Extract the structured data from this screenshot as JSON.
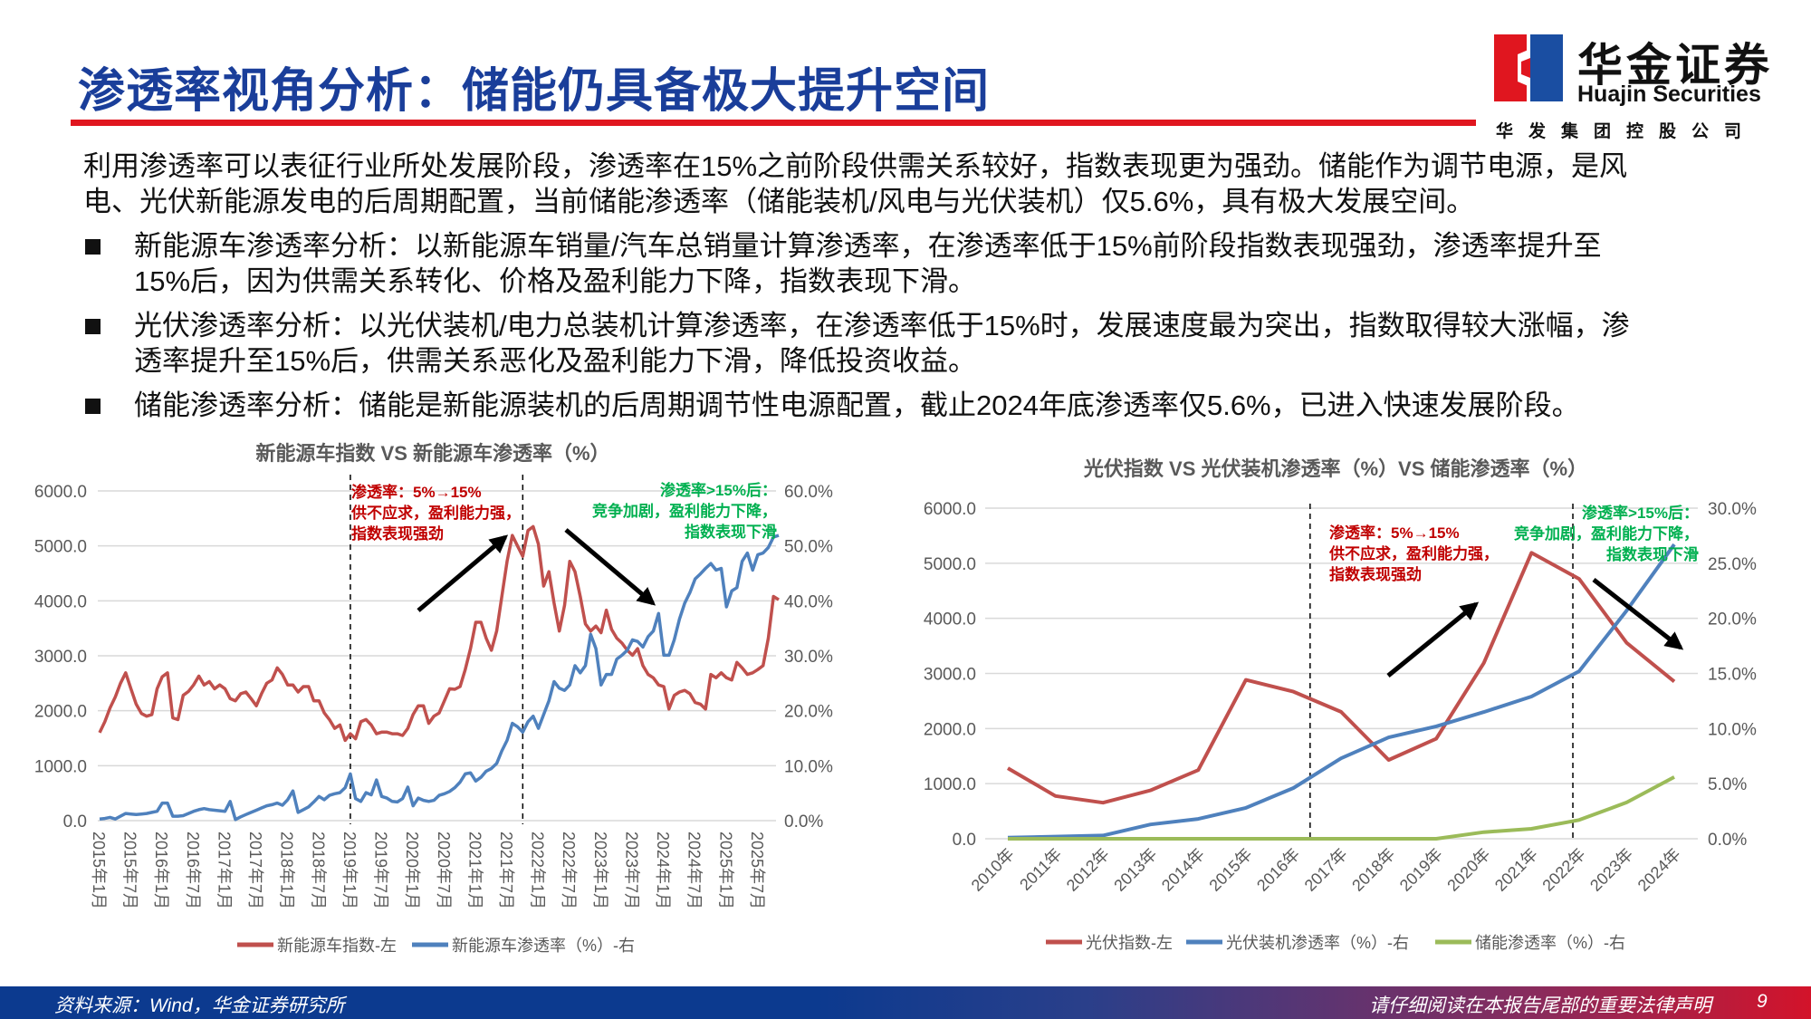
{
  "header": {
    "title": "渗透率视角分析：储能仍具备极大提升空间",
    "logo": {
      "cn": "华金证券",
      "en": "Huajin Securities",
      "group": "华发集团控股公司",
      "colors": {
        "red": "#e0161f",
        "blue": "#1a4ea2"
      }
    }
  },
  "intro": {
    "lines": [
      "利用渗透率可以表征行业所处发展阶段，渗透率在15%之前阶段供需关系较好，指数表现更为强劲。储能作为调节电源，是风",
      "电、光伏新能源发电的后周期配置，当前储能渗透率（储能装机/风电与光伏装机）仅5.6%，具有极大发展空间。"
    ]
  },
  "bullets": [
    {
      "lines": [
        "新能源车渗透率分析：以新能源车销量/汽车总销量计算渗透率，在渗透率低于15%前阶段指数表现强劲，渗透率提升至",
        "15%后，因为供需关系转化、价格及盈利能力下降，指数表现下滑。"
      ]
    },
    {
      "lines": [
        "光伏渗透率分析：以光伏装机/电力总装机计算渗透率，在渗透率低于15%时，发展速度最为突出，指数取得较大涨幅，渗",
        "透率提升至15%后，供需关系恶化及盈利能力下滑，降低投资收益。"
      ]
    },
    {
      "lines": [
        "储能渗透率分析：储能是新能源装机的后周期调节性电源配置，截止2024年底渗透率仅5.6%，已进入快速发展阶段。"
      ]
    }
  ],
  "footer": {
    "source": "资料来源：Wind，华金证券研究所",
    "disclaimer": "请仔细阅读在本报告尾部的重要法律声明",
    "page": "9"
  },
  "chart_data": [
    {
      "type": "line",
      "title": "新能源车指数 VS 新能源车渗透率（%）",
      "x": [
        "2015-01",
        "2015-02",
        "2015-03",
        "2015-04",
        "2015-05",
        "2015-06",
        "2015-07",
        "2015-08",
        "2015-09",
        "2015-10",
        "2015-11",
        "2015-12",
        "2016-01",
        "2016-02",
        "2016-03",
        "2016-04",
        "2016-05",
        "2016-06",
        "2016-07",
        "2016-08",
        "2016-09",
        "2016-10",
        "2016-11",
        "2016-12",
        "2017-01",
        "2017-02",
        "2017-03",
        "2017-04",
        "2017-05",
        "2017-06",
        "2017-07",
        "2017-08",
        "2017-09",
        "2017-10",
        "2017-11",
        "2017-12",
        "2018-01",
        "2018-02",
        "2018-03",
        "2018-04",
        "2018-05",
        "2018-06",
        "2018-07",
        "2018-08",
        "2018-09",
        "2018-10",
        "2018-11",
        "2018-12",
        "2019-01",
        "2019-02",
        "2019-03",
        "2019-04",
        "2019-05",
        "2019-06",
        "2019-07",
        "2019-08",
        "2019-09",
        "2019-10",
        "2019-11",
        "2019-12",
        "2020-01",
        "2020-02",
        "2020-03",
        "2020-04",
        "2020-05",
        "2020-06",
        "2020-07",
        "2020-08",
        "2020-09",
        "2020-10",
        "2020-11",
        "2020-12",
        "2021-01",
        "2021-02",
        "2021-03",
        "2021-04",
        "2021-05",
        "2021-06",
        "2021-07",
        "2021-08",
        "2021-09",
        "2021-10",
        "2021-11",
        "2021-12",
        "2022-01",
        "2022-02",
        "2022-03",
        "2022-04",
        "2022-05",
        "2022-06",
        "2022-07",
        "2022-08",
        "2022-09",
        "2022-10",
        "2022-11",
        "2022-12",
        "2023-01",
        "2023-02",
        "2023-03",
        "2023-04",
        "2023-05",
        "2023-06",
        "2023-07",
        "2023-08",
        "2023-09",
        "2023-10",
        "2023-11",
        "2023-12",
        "2024-01",
        "2024-02",
        "2024-03",
        "2024-04",
        "2024-05",
        "2024-06",
        "2024-07",
        "2024-08",
        "2024-09",
        "2024-10",
        "2024-11",
        "2024-12",
        "2025-01",
        "2025-02",
        "2025-03",
        "2025-04",
        "2025-05",
        "2025-06",
        "2025-07",
        "2025-08",
        "2025-09",
        "2025-10",
        "2025-11"
      ],
      "x_tick_labels": [
        "2015年1月",
        "2015年7月",
        "2016年1月",
        "2016年7月",
        "2017年1月",
        "2017年7月",
        "2018年1月",
        "2018年7月",
        "2019年1月",
        "2019年7月",
        "2020年1月",
        "2020年7月",
        "2021年1月",
        "2021年7月",
        "2022年1月",
        "2022年7月",
        "2023年1月",
        "2023年7月",
        "2024年1月",
        "2024年7月",
        "2025年1月",
        "2025年7月"
      ],
      "y_left": {
        "min": 0,
        "max": 6000,
        "ticks": [
          "0.0",
          "1000.0",
          "2000.0",
          "3000.0",
          "4000.0",
          "5000.0",
          "6000.0"
        ]
      },
      "y_right": {
        "min": 0,
        "max": 60,
        "ticks": [
          "0.0%",
          "10.0%",
          "20.0%",
          "30.0%",
          "40.0%",
          "50.0%",
          "60.0%"
        ]
      },
      "grid": true,
      "legend_position": "bottom",
      "series": [
        {
          "name": "新能源车指数-左",
          "axis": "left",
          "color": "#c0504d",
          "values": [
            1600,
            1800,
            2050,
            2250,
            2500,
            2690,
            2400,
            2120,
            1950,
            1900,
            1930,
            2400,
            2620,
            2690,
            1870,
            1840,
            2280,
            2350,
            2470,
            2630,
            2470,
            2530,
            2400,
            2470,
            2400,
            2220,
            2180,
            2310,
            2340,
            2220,
            2090,
            2310,
            2500,
            2560,
            2780,
            2660,
            2470,
            2470,
            2340,
            2440,
            2440,
            2180,
            2180,
            1960,
            1840,
            1680,
            1740,
            1460,
            1580,
            1490,
            1800,
            1840,
            1740,
            1580,
            1610,
            1610,
            1580,
            1580,
            1550,
            1680,
            1930,
            2090,
            2090,
            1770,
            1900,
            1960,
            2180,
            2400,
            2390,
            2440,
            2750,
            3130,
            3610,
            3610,
            3320,
            3100,
            3450,
            4080,
            4720,
            5190,
            5000,
            4810,
            5280,
            5350,
            5030,
            4270,
            4530,
            3960,
            3450,
            3920,
            4720,
            4530,
            4080,
            3580,
            3450,
            3540,
            3420,
            3830,
            3480,
            3320,
            3230,
            3100,
            3010,
            3130,
            2820,
            2660,
            2600,
            2470,
            2440,
            2030,
            2280,
            2340,
            2370,
            2310,
            2150,
            2120,
            2030,
            2660,
            2600,
            2690,
            2600,
            2560,
            2880,
            2780,
            2660,
            2690,
            2750,
            2820,
            3320,
            4080,
            4020
          ]
        },
        {
          "name": "新能源车渗透率（%）-右",
          "axis": "right",
          "color": "#4f81bd",
          "values": [
            0.3,
            0.4,
            0.6,
            0.3,
            0.8,
            1.3,
            1.2,
            1.1,
            1.2,
            1.3,
            1.5,
            1.7,
            3.2,
            3.2,
            0.8,
            0.8,
            0.9,
            1.3,
            1.7,
            2.0,
            2.2,
            2.0,
            1.9,
            1.8,
            1.7,
            3.5,
            0.2,
            0.7,
            1.1,
            1.5,
            1.9,
            2.3,
            2.7,
            2.9,
            3.2,
            2.8,
            3.8,
            5.4,
            1.5,
            2.0,
            2.5,
            3.4,
            4.4,
            3.8,
            4.6,
            4.9,
            5.1,
            6.0,
            8.5,
            4.0,
            3.5,
            5.1,
            4.7,
            7.4,
            4.4,
            4.1,
            3.5,
            3.4,
            4.0,
            6.1,
            2.7,
            4.1,
            3.7,
            3.5,
            3.7,
            4.6,
            4.9,
            5.3,
            6.0,
            7.0,
            8.5,
            8.7,
            7.2,
            7.9,
            9.0,
            9.5,
            10.4,
            12.7,
            14.6,
            17.7,
            17.1,
            16.1,
            18.0,
            19.0,
            16.8,
            19.3,
            21.8,
            25.3,
            24.1,
            23.7,
            24.7,
            28.2,
            26.9,
            28.2,
            33.9,
            31.3,
            24.7,
            26.6,
            26.6,
            29.4,
            30.1,
            31.0,
            32.9,
            32.6,
            31.6,
            33.5,
            34.5,
            37.7,
            30.1,
            30.1,
            32.9,
            36.7,
            39.6,
            41.5,
            44.0,
            44.9,
            45.9,
            46.8,
            45.6,
            45.9,
            38.9,
            41.8,
            42.4,
            47.2,
            48.7,
            45.6,
            48.4,
            48.7,
            49.7,
            51.6,
            51.9
          ]
        }
      ],
      "annotations": {
        "growth": {
          "lines": [
            "渗透率：5%→15%",
            "供不应求，盈利能力强，",
            "指数表现强劲"
          ],
          "color": "#c00000"
        },
        "decline": {
          "lines": [
            "渗透率>15%后：",
            "竞争加剧，盈利能力下降，",
            "指数表现下滑"
          ],
          "color": "#00b050"
        }
      }
    },
    {
      "type": "line",
      "title": "光伏指数 VS 光伏装机渗透率（%）VS 储能渗透率（%）",
      "categories": [
        "2010年",
        "2011年",
        "2012年",
        "2013年",
        "2014年",
        "2015年",
        "2016年",
        "2017年",
        "2018年",
        "2019年",
        "2020年",
        "2021年",
        "2022年",
        "2023年",
        "2024年"
      ],
      "y_left": {
        "min": 0,
        "max": 6000,
        "ticks": [
          "0.0",
          "1000.0",
          "2000.0",
          "3000.0",
          "4000.0",
          "5000.0",
          "6000.0"
        ]
      },
      "y_right": {
        "min": 0,
        "max": 30,
        "ticks": [
          "0.0%",
          "5.0%",
          "10.0%",
          "15.0%",
          "20.0%",
          "25.0%",
          "30.0%"
        ]
      },
      "grid": true,
      "legend_position": "bottom",
      "series": [
        {
          "name": "光伏指数-左",
          "axis": "left",
          "color": "#c0504d",
          "values": [
            1280,
            776,
            654,
            880,
            1246,
            2883,
            2670,
            2303,
            1430,
            1814,
            3190,
            5190,
            4716,
            3555,
            2853
          ]
        },
        {
          "name": "光伏装机渗透率（%）-右",
          "axis": "right",
          "color": "#4f81bd",
          "values": [
            0.1,
            0.2,
            0.3,
            1.3,
            1.8,
            2.8,
            4.6,
            7.3,
            9.2,
            10.2,
            11.5,
            12.9,
            15.2,
            20.7,
            26.7
          ]
        },
        {
          "name": "储能渗透率（%）-右",
          "axis": "right",
          "color": "#9bbb59",
          "values": [
            0.0,
            0.0,
            0.0,
            0.0,
            0.0,
            0.0,
            0.0,
            0.0,
            0.0,
            0.0,
            0.6,
            0.9,
            1.7,
            3.3,
            5.6
          ]
        }
      ],
      "annotations": {
        "growth": {
          "lines": [
            "渗透率：5%→15%",
            "供不应求，盈利能力强，",
            "指数表现强劲"
          ],
          "color": "#c00000"
        },
        "decline": {
          "lines": [
            "渗透率>15%后：",
            "竞争加剧，盈利能力下降，",
            "指数表现下滑"
          ],
          "color": "#00b050"
        }
      }
    }
  ]
}
